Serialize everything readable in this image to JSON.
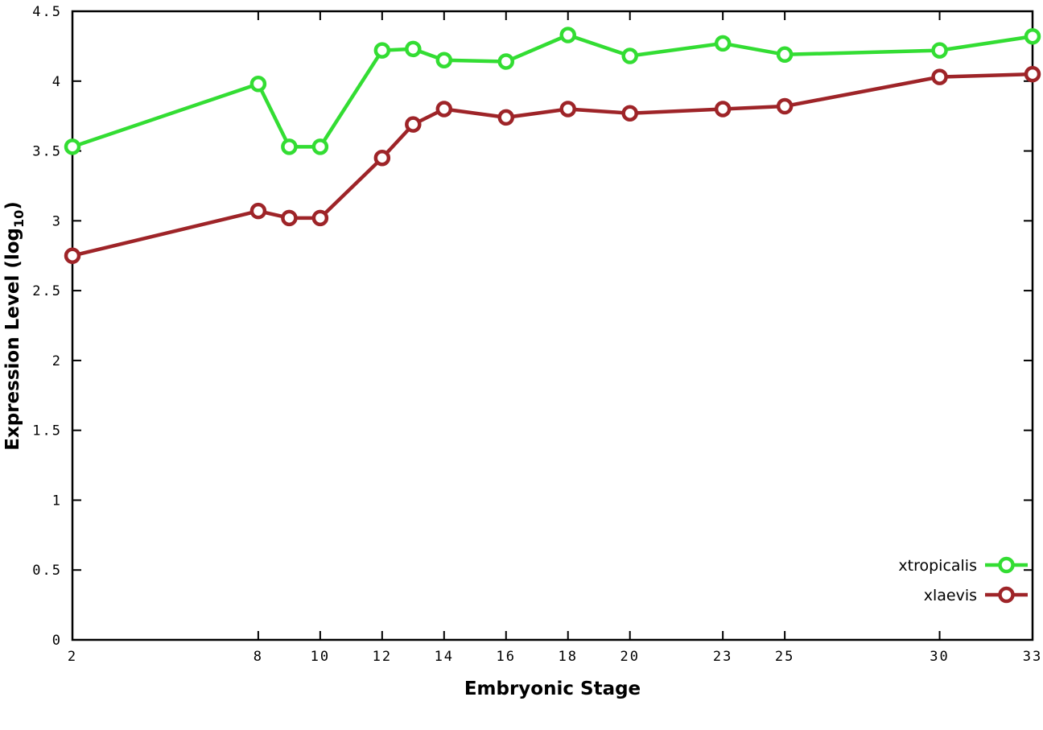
{
  "chart_data": {
    "type": "line",
    "title": "",
    "xlabel": "Embryonic Stage",
    "ylabel": "Expression Level (log10)",
    "ylabel_parts": {
      "main": "Expression Level (log",
      "sub": "10",
      "close": ")"
    },
    "x": [
      2,
      8,
      9,
      10,
      12,
      13,
      14,
      16,
      18,
      20,
      23,
      25,
      30,
      33
    ],
    "xticks": [
      2,
      8,
      10,
      12,
      14,
      16,
      18,
      20,
      23,
      25,
      30,
      33
    ],
    "yticks": [
      0,
      0.5,
      1,
      1.5,
      2,
      2.5,
      3,
      3.5,
      4,
      4.5
    ],
    "xlim": [
      2,
      33
    ],
    "ylim": [
      0,
      4.5
    ],
    "grid": false,
    "legend_position": "bottom-right",
    "series": [
      {
        "name": "xtropicalis",
        "color": "#33dd33",
        "values": [
          3.53,
          3.98,
          3.53,
          3.53,
          4.22,
          4.23,
          4.15,
          4.14,
          4.33,
          4.18,
          4.27,
          4.19,
          4.22,
          4.32
        ]
      },
      {
        "name": "xlaevis",
        "color": "#9e2428",
        "values": [
          2.75,
          3.07,
          3.02,
          3.02,
          3.45,
          3.69,
          3.8,
          3.74,
          3.8,
          3.77,
          3.8,
          3.82,
          4.03,
          4.05
        ]
      }
    ]
  }
}
